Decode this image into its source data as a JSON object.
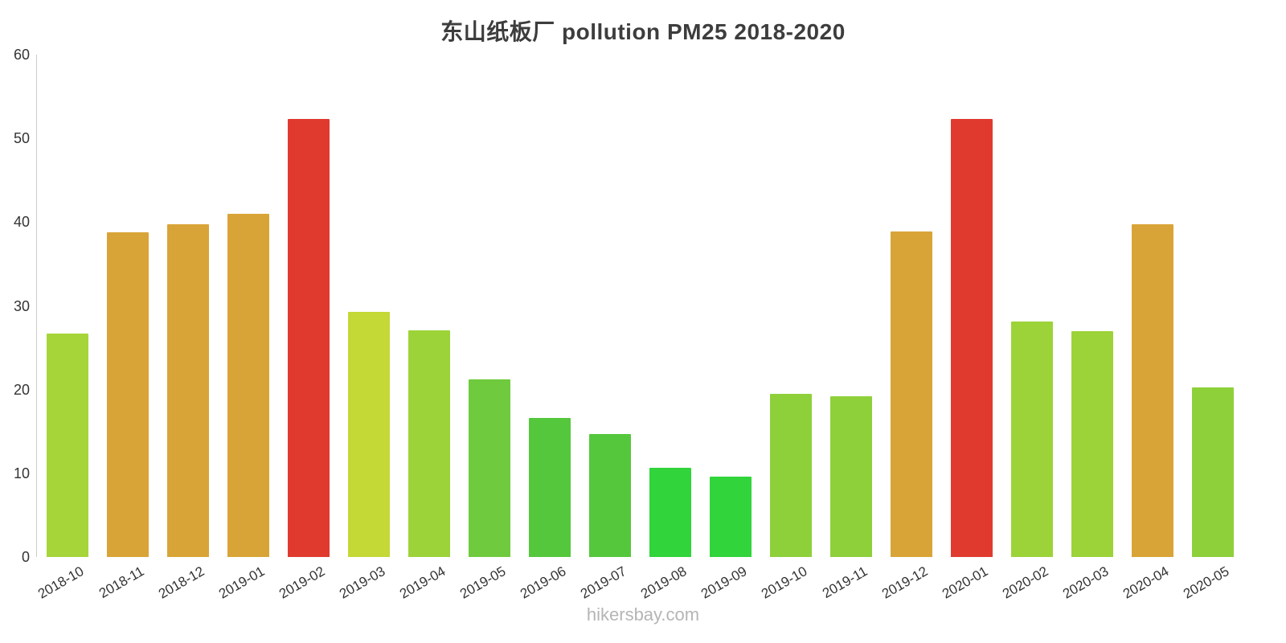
{
  "title": "东山纸板厂 pollution PM25 2018-2020",
  "watermark": "hikersbay.com",
  "chart_data": {
    "type": "bar",
    "title": "东山纸板厂 pollution PM25 2018-2020",
    "categories": [
      "2018-10",
      "2018-11",
      "2018-12",
      "2019-01",
      "2019-02",
      "2019-03",
      "2019-04",
      "2019-05",
      "2019-06",
      "2019-07",
      "2019-08",
      "2019-09",
      "2019-10",
      "2019-11",
      "2019-12",
      "2020-01",
      "2020-02",
      "2020-03",
      "2020-04",
      "2020-05"
    ],
    "values": [
      26.7,
      38.8,
      39.7,
      41.0,
      52.3,
      29.3,
      27.1,
      21.2,
      16.6,
      14.7,
      10.7,
      9.6,
      19.5,
      19.2,
      38.9,
      52.3,
      28.1,
      27.0,
      39.7,
      20.3
    ],
    "colors": [
      "#a6d53a",
      "#d9a437",
      "#d9a437",
      "#d9a437",
      "#e03a2e",
      "#c4d836",
      "#9cd339",
      "#6fca3d",
      "#55c73c",
      "#55c73c",
      "#31d43b",
      "#31d43b",
      "#8ed03a",
      "#8ed03a",
      "#d9a437",
      "#e03a2e",
      "#9cd339",
      "#9cd339",
      "#d9a437",
      "#8ed03a"
    ],
    "xlabel": "",
    "ylabel": "",
    "ylim": [
      0,
      60
    ],
    "yticks": [
      0,
      10,
      20,
      30,
      40,
      50,
      60
    ],
    "grid": false,
    "legend_position": "none",
    "axis_color": "#cccccc"
  }
}
